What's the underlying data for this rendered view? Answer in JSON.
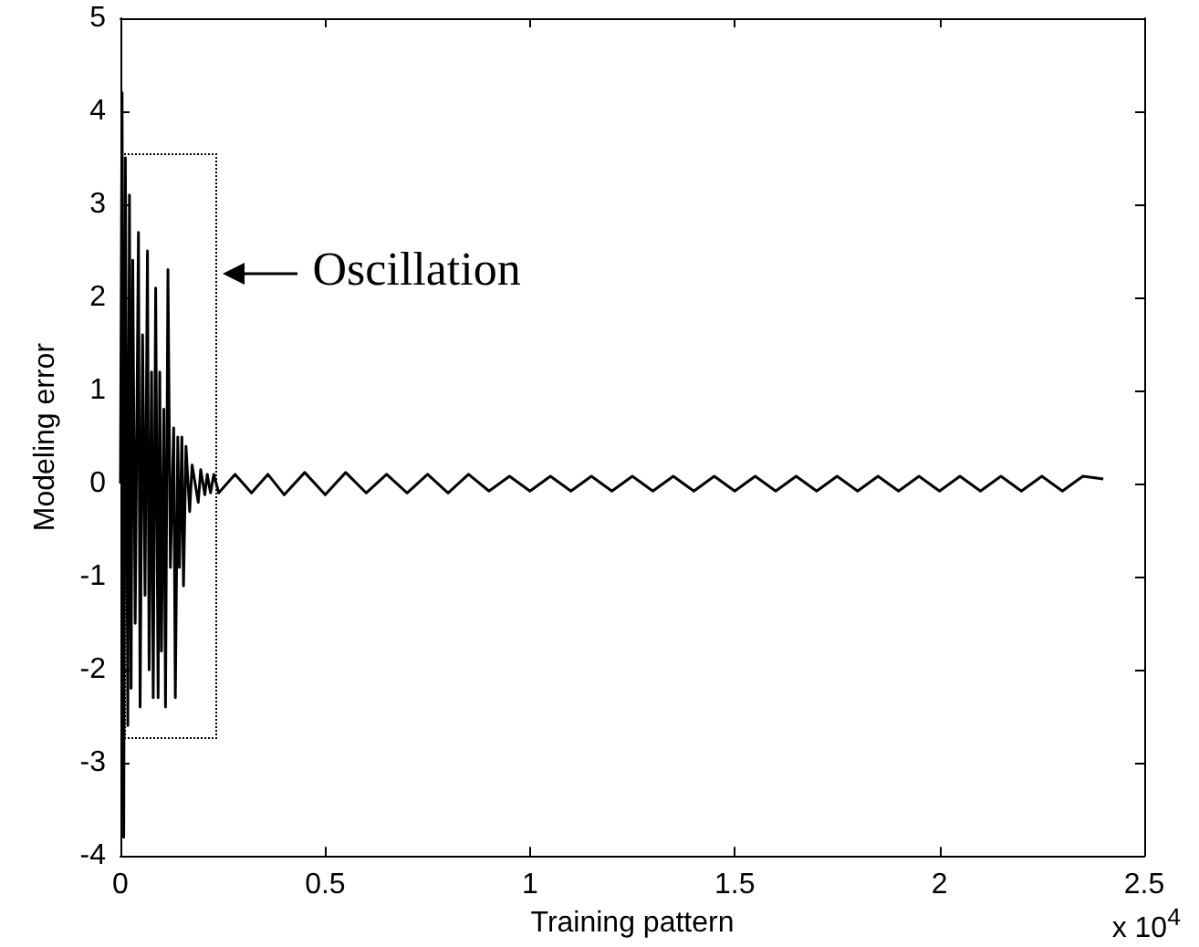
{
  "chart_data": {
    "type": "line",
    "xlabel": "Training pattern",
    "ylabel": "Modeling error",
    "annotations": [
      "Oscillation",
      "x 10$^{4}$"
    ],
    "xlim": [
      0,
      2.5
    ],
    "ylim": [
      -4,
      5
    ],
    "xticks": [
      0,
      0.5,
      1,
      1.5,
      2,
      2.5
    ],
    "yticks": [
      -4,
      -3,
      -2,
      -1,
      0,
      1,
      2,
      3,
      4,
      5
    ],
    "grid": false,
    "marker": "none",
    "line_style": "solid",
    "series": [
      {
        "color": "#000000",
        "x": [
          0,
          0.004,
          0.008,
          0.012,
          0.018,
          0.022,
          0.026,
          0.03,
          0.036,
          0.044,
          0.048,
          0.054,
          0.06,
          0.066,
          0.07,
          0.076,
          0.08,
          0.086,
          0.092,
          0.096,
          0.1,
          0.106,
          0.11,
          0.116,
          0.122,
          0.13,
          0.134,
          0.14,
          0.144,
          0.15,
          0.154,
          0.16,
          0.169,
          0.175,
          0.19,
          0.196,
          0.206,
          0.212,
          0.22,
          0.228,
          0.24,
          0.28,
          0.32,
          0.36,
          0.4,
          0.45,
          0.5,
          0.55,
          0.6,
          0.65,
          0.7,
          0.75,
          0.8,
          0.85,
          0.9,
          0.95,
          1,
          1.05,
          1.1,
          1.15,
          1.2,
          1.25,
          1.3,
          1.35,
          1.4,
          1.45,
          1.5,
          1.55,
          1.6,
          1.65,
          1.7,
          1.75,
          1.8,
          1.85,
          1.9,
          1.95,
          2,
          2.05,
          2.1,
          2.15,
          2.2,
          2.25,
          2.3,
          2.35,
          2.4
        ],
        "values": [
          0,
          4.2,
          -3.8,
          3.5,
          -2.6,
          3.1,
          -2.2,
          2.4,
          -1.5,
          2.7,
          -2.4,
          1.6,
          -1.2,
          2.5,
          -2,
          1.2,
          -2.3,
          2.1,
          -2.3,
          1.2,
          -1.8,
          0.8,
          -2.4,
          2.3,
          -0.9,
          0.6,
          -2.3,
          0.5,
          -0.9,
          0.5,
          -1.1,
          0.4,
          -0.3,
          0.2,
          -0.2,
          0.15,
          -0.12,
          0.1,
          -0.1,
          0.1,
          -0.1,
          0.1,
          -0.1,
          0.1,
          -0.12,
          0.12,
          -0.12,
          0.12,
          -0.1,
          0.1,
          -0.1,
          0.1,
          -0.1,
          0.1,
          -0.08,
          0.08,
          -0.08,
          0.08,
          -0.08,
          0.08,
          -0.08,
          0.08,
          -0.08,
          0.08,
          -0.08,
          0.08,
          -0.08,
          0.08,
          -0.08,
          0.08,
          -0.08,
          0.08,
          -0.08,
          0.08,
          -0.08,
          0.08,
          -0.08,
          0.08,
          -0.08,
          0.08,
          -0.08,
          0.08,
          -0.08,
          0.08,
          0.05
        ]
      }
    ]
  }
}
